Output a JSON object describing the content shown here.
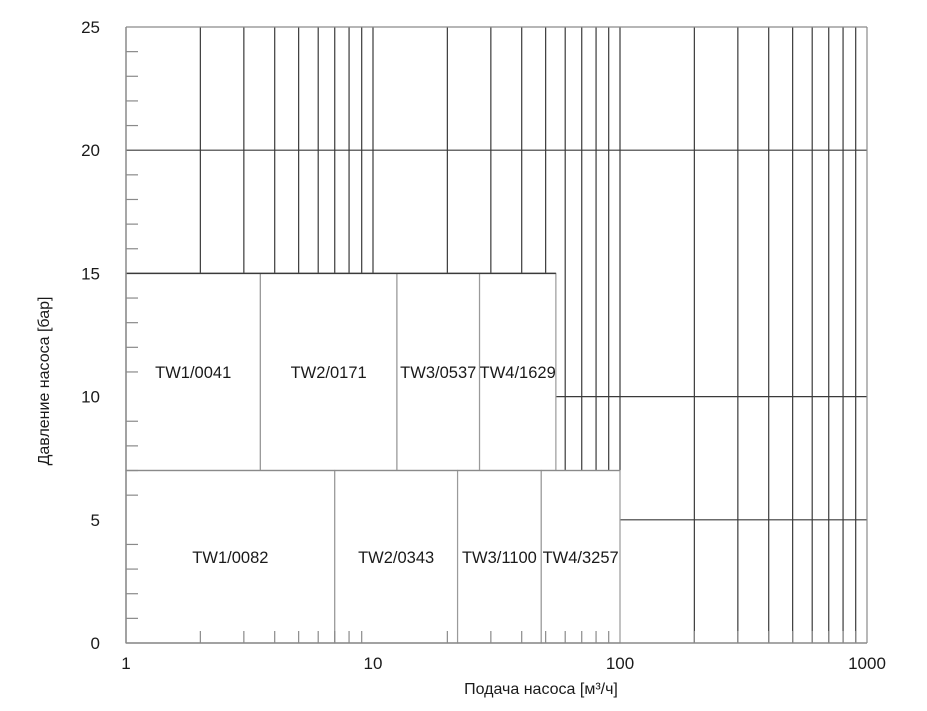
{
  "chart_data": {
    "type": "heatmap",
    "title": "",
    "xlabel": "Подача насоса   [м³/ч]",
    "ylabel": "Давление насоса [бар]",
    "x_scale": "log",
    "xlim": [
      1,
      1000
    ],
    "ylim": [
      0,
      25
    ],
    "x_tick_labels": [
      "1",
      "10",
      "100",
      "1000"
    ],
    "y_tick_labels": [
      "0",
      "5",
      "10",
      "15",
      "20",
      "25"
    ],
    "grid": true,
    "regions": [
      {
        "name": "TW1/0041",
        "x_range": [
          1,
          3.5
        ],
        "y_range": [
          7,
          15
        ]
      },
      {
        "name": "TW2/0171",
        "x_range": [
          3.5,
          12.5
        ],
        "y_range": [
          7,
          15
        ]
      },
      {
        "name": "TW3/0537",
        "x_range": [
          12.5,
          27
        ],
        "y_range": [
          7,
          15
        ]
      },
      {
        "name": "TW4/1629",
        "x_range": [
          27,
          55
        ],
        "y_range": [
          7,
          15
        ]
      },
      {
        "name": "TW1/0082",
        "x_range": [
          1,
          7
        ],
        "y_range": [
          0,
          7
        ]
      },
      {
        "name": "TW2/0343",
        "x_range": [
          7,
          22
        ],
        "y_range": [
          0,
          7
        ]
      },
      {
        "name": "TW3/1100",
        "x_range": [
          22,
          48
        ],
        "y_range": [
          0,
          7
        ]
      },
      {
        "name": "TW4/3257",
        "x_range": [
          48,
          100
        ],
        "y_range": [
          0,
          7
        ]
      }
    ]
  }
}
